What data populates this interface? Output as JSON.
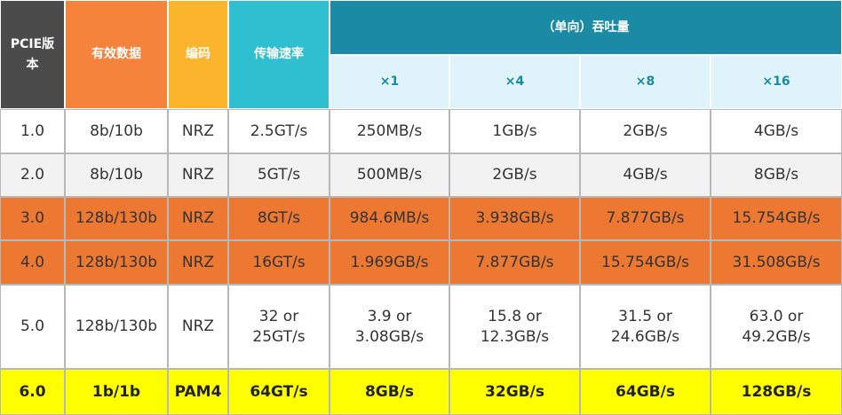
{
  "table": {
    "header": [
      "PCIE版\n本",
      "有效数据",
      "编码",
      "传输速率",
      "（单向）吞吐量"
    ],
    "subheader": [
      "×1",
      "×4",
      "×8",
      "×16"
    ],
    "rows": [
      [
        "1.0",
        "8b/10b",
        "NRZ",
        "2.5GT/s",
        "250MB/s",
        "1GB/s",
        "2GB/s",
        "4GB/s"
      ],
      [
        "2.0",
        "8b/10b",
        "NRZ",
        "5GT/s",
        "500MB/s",
        "2GB/s",
        "4GB/s",
        "8GB/s"
      ],
      [
        "3.0",
        "128b/130b",
        "NRZ",
        "8GT/s",
        "984.6MB/s",
        "3.938GB/s",
        "7.877GB/s",
        "15.754GB/s"
      ],
      [
        "4.0",
        "128b/130b",
        "NRZ",
        "16GT/s",
        "1.969GB/s",
        "7.877GB/s",
        "15.754GB/s",
        "31.508GB/s"
      ],
      [
        "5.0",
        "128b/130b",
        "NRZ",
        "32 or\n25GT/s",
        "3.9 or\n3.08GB/s",
        "15.8 or\n12.3GB/s",
        "31.5 or\n24.6GB/s",
        "63.0 or\n49.2GB/s"
      ],
      [
        "6.0",
        "1b/1b",
        "PAM4",
        "64GT/s",
        "8GB/s",
        "32GB/s",
        "64GB/s",
        "128GB/s"
      ]
    ]
  }
}
